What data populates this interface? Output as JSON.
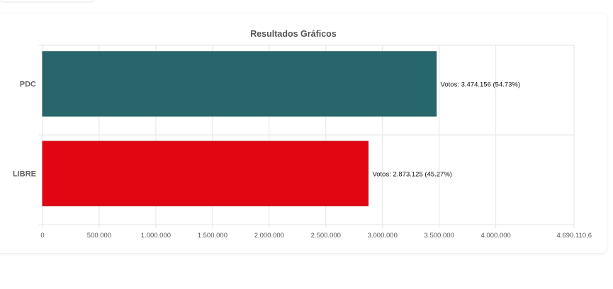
{
  "chart_data": {
    "type": "bar",
    "orientation": "horizontal",
    "title": "Resultados Gráficos",
    "xlabel": "",
    "ylabel": "",
    "categories": [
      "PDC",
      "LIBRE"
    ],
    "values": [
      3474156,
      2873125
    ],
    "data_labels": [
      "Votos: 3.474.156 (54.73%)",
      "Votos: 2.873.125 (45.27%)"
    ],
    "colors": [
      "#27666a",
      "#e20613"
    ],
    "xlim": [
      0,
      4690110.6
    ],
    "x_ticks": [
      0,
      500000,
      1000000,
      1500000,
      2000000,
      2500000,
      3000000,
      3500000,
      4000000,
      4690110.6
    ],
    "x_tick_labels": [
      "0",
      "500.000",
      "1.000.000",
      "1.500.000",
      "2.000.000",
      "2.500.000",
      "3.000.000",
      "3.500.000",
      "4.000.000",
      "4.690.110,6"
    ],
    "grid": true,
    "legend": "none"
  }
}
